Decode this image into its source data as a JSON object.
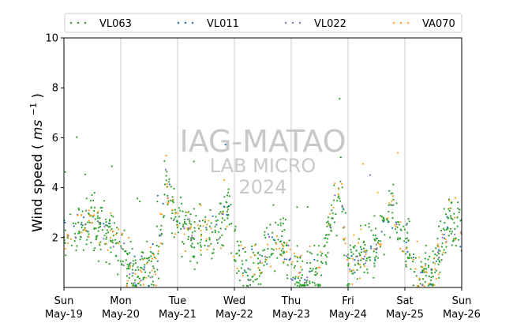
{
  "chart_data": {
    "type": "scatter",
    "ylabel": "Wind speed",
    "ylabel_unit_base": "ms",
    "ylabel_unit_exp": "−1",
    "ylim": [
      0,
      10
    ],
    "yticks": [
      2,
      4,
      6,
      8,
      10
    ],
    "x_range": [
      "2024-05-19",
      "2024-05-26"
    ],
    "xticks": [
      {
        "day": "Sun",
        "date": "May-19"
      },
      {
        "day": "Mon",
        "date": "May-20"
      },
      {
        "day": "Tue",
        "date": "May-21"
      },
      {
        "day": "Wed",
        "date": "May-22"
      },
      {
        "day": "Thu",
        "date": "May-23"
      },
      {
        "day": "Fri",
        "date": "May-24"
      },
      {
        "day": "Sat",
        "date": "May-25"
      },
      {
        "day": "Sun",
        "date": "May-26"
      }
    ],
    "grid": "vertical",
    "legend_position": "top",
    "watermark": [
      "IAG-MATAO",
      "LAB MICRO",
      "2024"
    ],
    "series": [
      {
        "name": "VL063",
        "color": "#2ca02c"
      },
      {
        "name": "VL011",
        "color": "#1f77b4"
      },
      {
        "name": "VL022",
        "color": "#9467bd"
      },
      {
        "name": "VA070",
        "color": "#ff9f1c"
      }
    ],
    "profile": [
      [
        "2024-05-19T00:00",
        2.0
      ],
      [
        "2024-05-19T06:00",
        2.3
      ],
      [
        "2024-05-19T12:00",
        2.7
      ],
      [
        "2024-05-19T18:00",
        2.2
      ],
      [
        "2024-05-20T00:00",
        1.6
      ],
      [
        "2024-05-20T06:00",
        0.6
      ],
      [
        "2024-05-20T12:00",
        0.7
      ],
      [
        "2024-05-20T16:00",
        1.4
      ],
      [
        "2024-05-20T19:00",
        4.3
      ],
      [
        "2024-05-21T00:00",
        2.6
      ],
      [
        "2024-05-21T06:00",
        2.1
      ],
      [
        "2024-05-21T12:00",
        2.2
      ],
      [
        "2024-05-21T18:00",
        2.6
      ],
      [
        "2024-05-21T22:00",
        3.0
      ],
      [
        "2024-05-22T00:00",
        1.5
      ],
      [
        "2024-05-22T06:00",
        0.5
      ],
      [
        "2024-05-22T12:00",
        1.2
      ],
      [
        "2024-05-22T16:00",
        1.9
      ],
      [
        "2024-05-22T22:00",
        1.6
      ],
      [
        "2024-05-23T00:00",
        0.7
      ],
      [
        "2024-05-23T06:00",
        0.4
      ],
      [
        "2024-05-23T12:00",
        0.6
      ],
      [
        "2024-05-23T18:00",
        3.2
      ],
      [
        "2024-05-23T21:00",
        4.1
      ],
      [
        "2024-05-24T00:00",
        0.6
      ],
      [
        "2024-05-24T06:00",
        1.4
      ],
      [
        "2024-05-24T12:00",
        1.8
      ],
      [
        "2024-05-24T18:00",
        3.0
      ],
      [
        "2024-05-25T00:00",
        2.2
      ],
      [
        "2024-05-25T06:00",
        0.5
      ],
      [
        "2024-05-25T12:00",
        0.6
      ],
      [
        "2024-05-25T18:00",
        2.5
      ],
      [
        "2024-05-26T00:00",
        2.3
      ]
    ]
  }
}
